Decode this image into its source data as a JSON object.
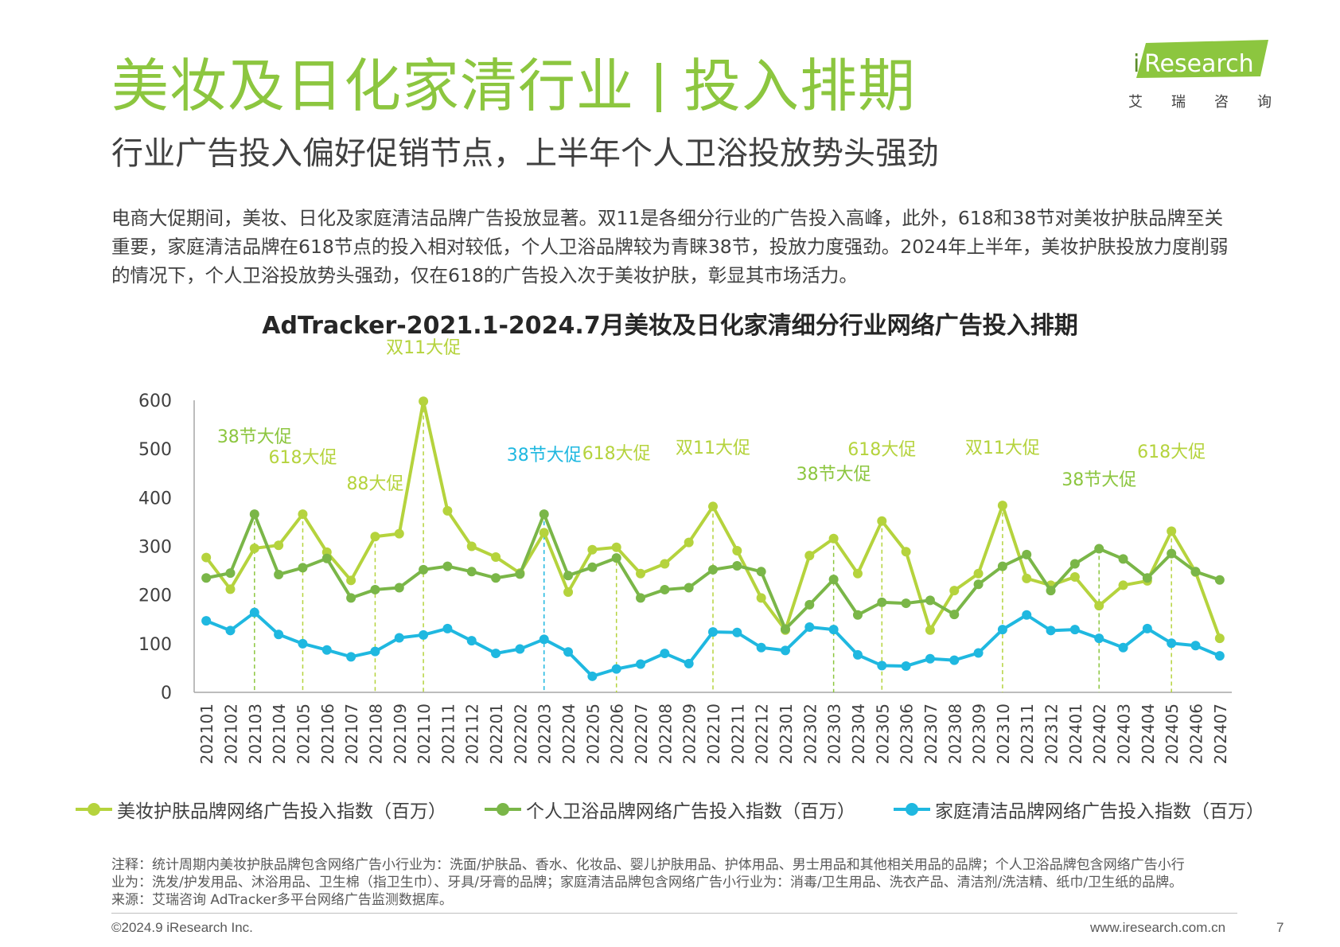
{
  "header": {
    "title_left": "美妆及日化家清行业",
    "title_right": "投入排期",
    "subtitle": "行业广告投入偏好促销节点，上半年个人卫浴投放势头强劲"
  },
  "logo": {
    "brand_i": "i",
    "brand": "Research",
    "sub": [
      "艾",
      "瑞",
      "咨",
      "询"
    ]
  },
  "body_text": "电商大促期间，美妆、日化及家庭清洁品牌广告投放显著。双11是各细分行业的广告投入高峰，此外，618和38节对美妆护肤品牌至关重要，家庭清洁品牌在618节点的投入相对较低，个人卫浴品牌较为青睐38节，投放力度强劲。2024年上半年，美妆护肤投放力度削弱的情况下，个人卫浴投放势头强劲，仅在618的广告投入次于美妆护肤，彰显其市场活力。",
  "chart_data": {
    "type": "line",
    "title": "AdTracker-2021.1-2024.7月美妆及日化家清细分行业网络广告投入排期",
    "ylim": [
      0,
      600
    ],
    "yticks": [
      "0",
      "100",
      "200",
      "300",
      "400",
      "500",
      "600"
    ],
    "grid": false,
    "legend_position": "bottom",
    "categories": [
      "202101",
      "202102",
      "202103",
      "202104",
      "202105",
      "202106",
      "202107",
      "202108",
      "202109",
      "202110",
      "202111",
      "202112",
      "202201",
      "202202",
      "202203",
      "202204",
      "202205",
      "202206",
      "202207",
      "202208",
      "202209",
      "202210",
      "202211",
      "202212",
      "202301",
      "202302",
      "202303",
      "202304",
      "202305",
      "202306",
      "202307",
      "202308",
      "202309",
      "202310",
      "202311",
      "202312",
      "202401",
      "202402",
      "202403",
      "202404",
      "202405",
      "202406",
      "202407"
    ],
    "series": [
      {
        "name": "美妆护肤品牌网络广告投入指数（百万）",
        "color": "#b5d33d",
        "values": [
          277,
          212,
          296,
          302,
          366,
          288,
          230,
          320,
          326,
          598,
          373,
          300,
          278,
          245,
          328,
          206,
          293,
          298,
          244,
          264,
          308,
          382,
          291,
          194,
          128,
          281,
          316,
          244,
          352,
          289,
          128,
          209,
          244,
          384,
          234,
          220,
          237,
          178,
          220,
          229,
          331,
          247,
          111
        ]
      },
      {
        "name": "个人卫浴品牌网络广告投入指数（百万）",
        "color": "#7ab648",
        "values": [
          235,
          245,
          366,
          242,
          256,
          275,
          194,
          211,
          215,
          252,
          259,
          248,
          235,
          243,
          366,
          240,
          257,
          276,
          194,
          211,
          215,
          252,
          260,
          248,
          130,
          180,
          232,
          159,
          185,
          183,
          189,
          160,
          222,
          259,
          283,
          209,
          264,
          295,
          274,
          235,
          285,
          248,
          231
        ]
      },
      {
        "name": "家庭清洁品牌网络广告投入指数（百万）",
        "color": "#1fb8e0",
        "values": [
          147,
          127,
          164,
          119,
          100,
          87,
          73,
          84,
          112,
          118,
          131,
          106,
          80,
          89,
          109,
          83,
          33,
          48,
          58,
          80,
          59,
          124,
          123,
          92,
          86,
          134,
          129,
          77,
          55,
          54,
          69,
          66,
          81,
          129,
          159,
          127,
          129,
          111,
          92,
          131,
          101,
          96,
          75
        ]
      }
    ],
    "annotations": [
      {
        "text": "38节大促",
        "index": 2,
        "color": "#8cc63f",
        "label_y": 542,
        "line": true
      },
      {
        "text": "618大促",
        "index": 4,
        "color": "#b5d33d",
        "label_y": 568,
        "line": true
      },
      {
        "text": "88大促",
        "index": 7,
        "color": "#b5d33d",
        "label_y": 601,
        "line": true
      },
      {
        "text": "双11大促",
        "index": 9,
        "color": "#b5d33d",
        "label_y": 430,
        "line": true
      },
      {
        "text": "38节大促",
        "index": 14,
        "color": "#1fb8e0",
        "label_y": 565,
        "line": true
      },
      {
        "text": "618大促",
        "index": 17,
        "color": "#b5d33d",
        "label_y": 563,
        "line": true
      },
      {
        "text": "双11大促",
        "index": 21,
        "color": "#b5d33d",
        "label_y": 556,
        "line": true
      },
      {
        "text": "38节大促",
        "index": 26,
        "color": "#8cc63f",
        "label_y": 589,
        "line": true
      },
      {
        "text": "618大促",
        "index": 28,
        "color": "#b5d33d",
        "label_y": 558,
        "line": true
      },
      {
        "text": "双11大促",
        "index": 33,
        "color": "#b5d33d",
        "label_y": 556,
        "line": true
      },
      {
        "text": "38节大促",
        "index": 37,
        "color": "#8cc63f",
        "label_y": 596,
        "line": true
      },
      {
        "text": "618大促",
        "index": 40,
        "color": "#b5d33d",
        "label_y": 561,
        "line": true
      }
    ]
  },
  "note": {
    "line1": "注释：统计周期内美妆护肤品牌包含网络广告小行业为：洗面/护肤品、香水、化妆品、婴儿护肤用品、护体用品、男士用品和其他相关用品的品牌；个人卫浴品牌包含网络广告小行",
    "line2": "业为：洗发/护发用品、沐浴用品、卫生棉（指卫生巾）、牙具/牙膏的品牌；家庭清洁品牌包含网络广告小行业为：消毒/卫生用品、洗衣产品、清洁剂/洗洁精、纸巾/卫生纸的品牌。",
    "line3": "来源：艾瑞咨询 AdTracker多平台网络广告监测数据库。"
  },
  "footer": {
    "copyright": "©2024.9 iResearch Inc.",
    "url": "www.iresearch.com.cn",
    "page": "7"
  }
}
